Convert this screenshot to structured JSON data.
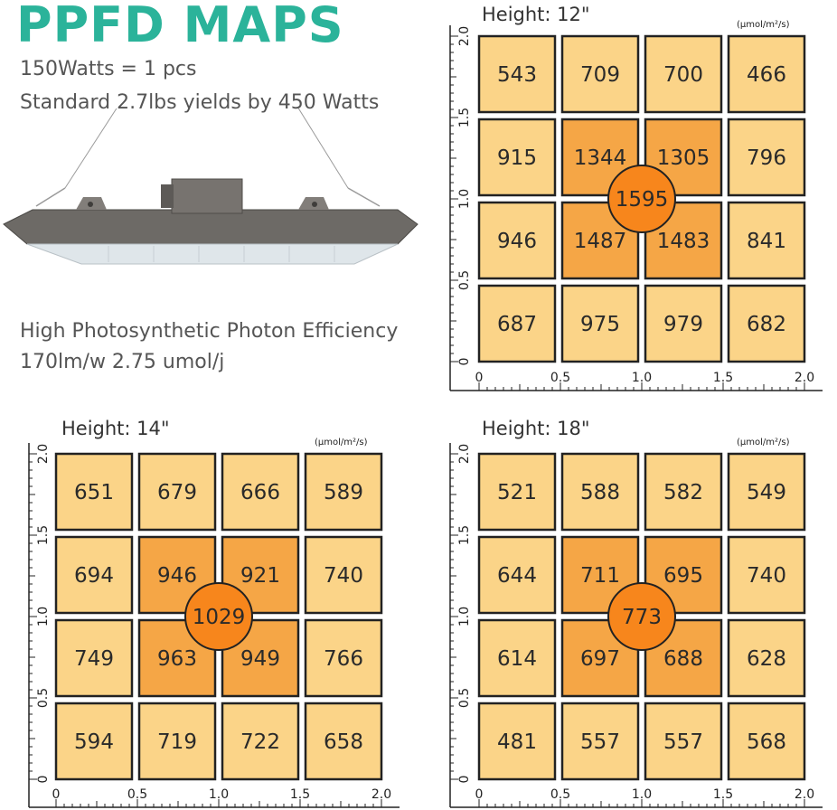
{
  "header": {
    "title": "PPFD MAPS",
    "line1": "150Watts = 1 pcs",
    "line2": "Standard 2.7lbs yields by 450 Watts",
    "line3": "High Photosynthetic Photon Efficiency",
    "line4": "170lm/w 2.75 umol/j"
  },
  "colors": {
    "title": "#2bb39a",
    "cell_light": "#fbd488",
    "cell_dark": "#f5a646",
    "center": "#f7861c",
    "border": "#222222"
  },
  "chart_data": [
    {
      "type": "heatmap",
      "title": "Height: 12\"",
      "unit": "(μmol/m²/s)",
      "x_ticks": [
        "0",
        "0.5",
        "1.0",
        "1.5",
        "2.0"
      ],
      "y_ticks": [
        "0",
        "0.5",
        "1.0",
        "1.5",
        "2.0"
      ],
      "xlim": [
        0,
        2.0
      ],
      "ylim": [
        0,
        2.0
      ],
      "rows": [
        [
          543,
          709,
          700,
          466
        ],
        [
          915,
          1344,
          1305,
          796
        ],
        [
          946,
          1487,
          1483,
          841
        ],
        [
          687,
          975,
          979,
          682
        ]
      ],
      "center": 1595
    },
    {
      "type": "heatmap",
      "title": "Height: 14\"",
      "unit": "(μmol/m²/s)",
      "x_ticks": [
        "0",
        "0.5",
        "1.0",
        "1.5",
        "2.0"
      ],
      "y_ticks": [
        "0",
        "0.5",
        "1.0",
        "1.5",
        "2.0"
      ],
      "xlim": [
        0,
        2.0
      ],
      "ylim": [
        0,
        2.0
      ],
      "rows": [
        [
          651,
          679,
          666,
          589
        ],
        [
          694,
          946,
          921,
          740
        ],
        [
          749,
          963,
          949,
          766
        ],
        [
          594,
          719,
          722,
          658
        ]
      ],
      "center": 1029
    },
    {
      "type": "heatmap",
      "title": "Height: 18\"",
      "unit": "(μmol/m²/s)",
      "x_ticks": [
        "0",
        "0.5",
        "1.0",
        "1.5",
        "2.0"
      ],
      "y_ticks": [
        "0",
        "0.5",
        "1.0",
        "1.5",
        "2.0"
      ],
      "xlim": [
        0,
        2.0
      ],
      "ylim": [
        0,
        2.0
      ],
      "rows": [
        [
          521,
          588,
          582,
          549
        ],
        [
          644,
          711,
          695,
          740
        ],
        [
          614,
          697,
          688,
          628
        ],
        [
          481,
          557,
          557,
          568
        ]
      ],
      "center": 773
    }
  ]
}
